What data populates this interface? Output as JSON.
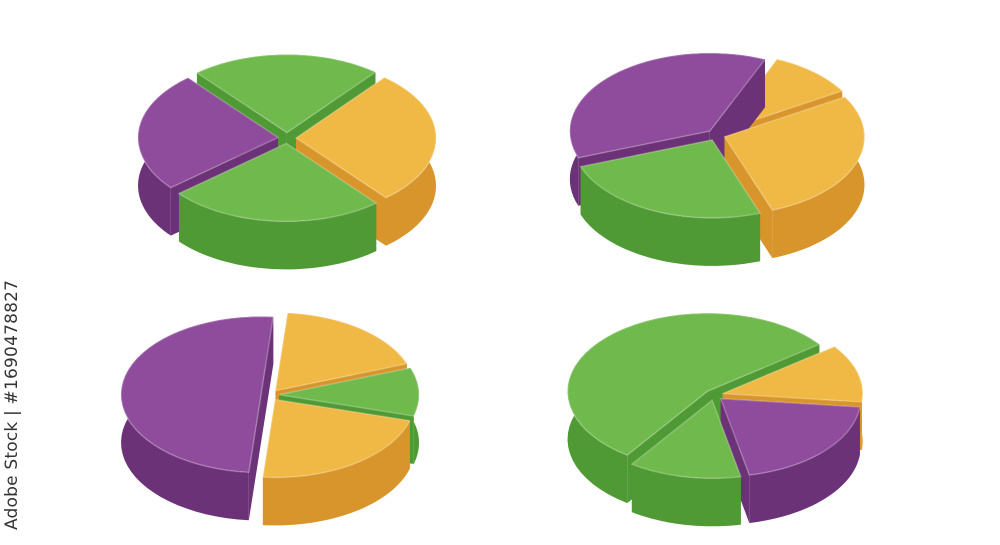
{
  "credit": "Adobe Stock | #1690478827",
  "colors": {
    "purple": "#8f4c9c",
    "purple_side": "#6c3277",
    "orange": "#f0b945",
    "orange_side": "#d8952b",
    "green": "#70b94c",
    "green_side": "#4f9a34"
  },
  "chart_data": [
    {
      "type": "pie",
      "style": "3d-exploded",
      "start_angle_deg": -130,
      "slices": [
        {
          "value": 22,
          "color": "green"
        },
        {
          "value": 28,
          "color": "orange"
        },
        {
          "value": 25,
          "color": "green"
        },
        {
          "value": 25,
          "color": "purple"
        }
      ]
    },
    {
      "type": "pie",
      "style": "3d-exploded",
      "start_angle_deg": 160,
      "slices": [
        {
          "value": 37,
          "color": "purple"
        },
        {
          "value": 10,
          "color": "orange"
        },
        {
          "value": 28,
          "color": "orange"
        },
        {
          "value": 25,
          "color": "green"
        }
      ]
    },
    {
      "type": "pie",
      "style": "3d-exploded",
      "start_angle_deg": 95,
      "slices": [
        {
          "value": 50,
          "color": "purple"
        },
        {
          "value": 18,
          "color": "orange"
        },
        {
          "value": 10,
          "color": "green"
        },
        {
          "value": 22,
          "color": "orange"
        }
      ]
    },
    {
      "type": "pie",
      "style": "3d-exploded",
      "start_angle_deg": 125,
      "slices": [
        {
          "value": 55,
          "color": "green"
        },
        {
          "value": 12,
          "color": "orange"
        },
        {
          "value": 20,
          "color": "purple"
        },
        {
          "value": 13,
          "color": "green"
        }
      ]
    }
  ]
}
